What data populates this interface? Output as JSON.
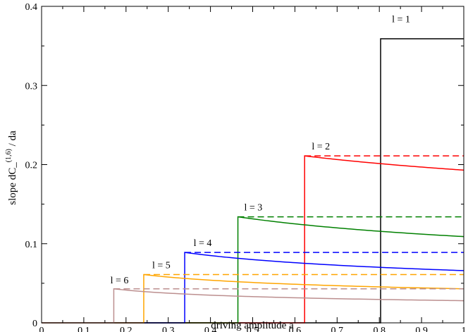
{
  "chart_data": {
    "type": "line",
    "xlabel": "driving amplitude a",
    "ylabel": {
      "prefix": "slope  dC_",
      "superscript": "(1,6)",
      "suffix": " / da"
    },
    "xlim": [
      0,
      1
    ],
    "ylim": [
      0,
      0.4
    ],
    "x_ticks": [
      0,
      0.1,
      0.2,
      0.3,
      0.4,
      0.5,
      0.6,
      0.7,
      0.8,
      0.9,
      1
    ],
    "x_tick_labels": [
      "0",
      "0.1",
      "0.2",
      "0.3",
      "0.4",
      "0.5",
      "0.6",
      "0.7",
      "0.8",
      "0.9",
      "1"
    ],
    "y_ticks": [
      0,
      0.1,
      0.2,
      0.3,
      0.4
    ],
    "y_tick_labels": [
      "0",
      "0.1",
      "0.2",
      "0.3",
      "0.4"
    ],
    "grid": false,
    "series": [
      {
        "color": "#000000",
        "solid": {
          "onset": 0.803,
          "peak": 0.359,
          "end": 0.359
        },
        "dashed": null,
        "annotation": {
          "text": "l = 1",
          "x": 0.83,
          "y": 0.38
        }
      },
      {
        "color": "#ff0000",
        "solid": {
          "onset": 0.623,
          "peak": 0.211,
          "end": 0.193
        },
        "dashed": {
          "x_start": 0.623,
          "y": 0.211
        },
        "annotation": {
          "text": "l = 2",
          "x": 0.64,
          "y": 0.219
        }
      },
      {
        "color": "#008000",
        "solid": {
          "onset": 0.465,
          "peak": 0.134,
          "end": 0.109
        },
        "dashed": {
          "x_start": 0.465,
          "y": 0.134
        },
        "annotation": {
          "text": "l = 3",
          "x": 0.48,
          "y": 0.142
        }
      },
      {
        "color": "#0000ff",
        "solid": {
          "onset": 0.339,
          "peak": 0.089,
          "end": 0.066
        },
        "dashed": {
          "x_start": 0.339,
          "y": 0.089
        },
        "annotation": {
          "text": "l = 4",
          "x": 0.36,
          "y": 0.097
        }
      },
      {
        "color": "#ffa500",
        "solid": {
          "onset": 0.242,
          "peak": 0.061,
          "end": 0.043
        },
        "dashed": {
          "x_start": 0.242,
          "y": 0.061
        },
        "annotation": {
          "text": "l = 5",
          "x": 0.262,
          "y": 0.069
        }
      },
      {
        "color": "#bc8f8f",
        "solid": {
          "onset": 0.171,
          "peak": 0.043,
          "end": 0.028
        },
        "dashed": {
          "x_start": 0.171,
          "y": 0.043
        },
        "annotation": {
          "text": "l = 6",
          "x": 0.163,
          "y": 0.05
        }
      }
    ]
  }
}
